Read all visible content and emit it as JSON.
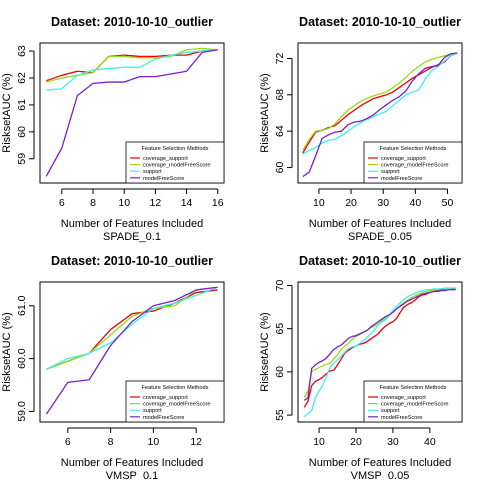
{
  "legend": {
    "title": "Feature Selection Methods",
    "entries": [
      "coverage_support",
      "coverage_modelFreeScore",
      "support",
      "modelFreeScore"
    ]
  },
  "colors": {
    "coverage_support": "#e8000b",
    "coverage_modelFreeScore": "#96dc14",
    "support": "#3cf0f0",
    "modelFreeScore": "#7a1fd0"
  },
  "chart_data": [
    {
      "type": "line",
      "title": "Dataset: 2010-10-10_outlier",
      "xlabel": "Number of Features Included",
      "subtitle": "SPADE_0.1",
      "ylabel": "RisksetAUC (%)",
      "xlim": [
        4.6,
        16.4
      ],
      "ylim": [
        58.1,
        63.3
      ],
      "xticks": [
        6,
        8,
        10,
        12,
        14,
        16
      ],
      "yticks": [
        59,
        60,
        61,
        62,
        63
      ],
      "legend_position": "bottom-right",
      "x": [
        5,
        6,
        7,
        8,
        9,
        10,
        11,
        12,
        13,
        14,
        15,
        16
      ],
      "series": [
        {
          "name": "coverage_support",
          "values": [
            61.9,
            62.1,
            62.25,
            62.2,
            62.8,
            62.85,
            62.8,
            62.8,
            62.85,
            62.85,
            63.0,
            63.05
          ]
        },
        {
          "name": "coverage_modelFreeScore",
          "values": [
            61.85,
            62.0,
            62.1,
            62.2,
            62.8,
            62.8,
            62.75,
            62.75,
            62.8,
            63.05,
            63.1,
            63.05
          ]
        },
        {
          "name": "support",
          "values": [
            61.55,
            61.6,
            62.1,
            62.3,
            62.35,
            62.4,
            62.4,
            62.7,
            62.85,
            62.95,
            63.0,
            63.05
          ]
        },
        {
          "name": "modelFreeScore",
          "values": [
            58.35,
            59.4,
            61.35,
            61.8,
            61.85,
            61.85,
            62.05,
            62.05,
            62.15,
            62.25,
            62.95,
            63.05
          ]
        }
      ]
    },
    {
      "type": "line",
      "title": "Dataset: 2010-10-10_outlier",
      "xlabel": "Number of Features Included",
      "subtitle": "SPADE_0.05",
      "ylabel": "RisksetAUC (%)",
      "xlim": [
        3.5,
        54.5
      ],
      "ylim": [
        58.3,
        73.7
      ],
      "xticks": [
        10,
        20,
        30,
        40,
        50
      ],
      "yticks": [
        60,
        64,
        68,
        72
      ],
      "legend_position": "bottom-right",
      "x": [
        5,
        7,
        9,
        11,
        13,
        15,
        17,
        19,
        21,
        23,
        25,
        27,
        29,
        31,
        33,
        35,
        37,
        39,
        41,
        43,
        45,
        47,
        49,
        51,
        53
      ],
      "series": [
        {
          "name": "coverage_support",
          "values": [
            61.6,
            62.8,
            63.9,
            64.1,
            64.4,
            64.6,
            65.2,
            65.8,
            66.3,
            66.8,
            67.2,
            67.6,
            67.8,
            68.0,
            68.3,
            68.8,
            69.3,
            69.8,
            70.2,
            70.6,
            71.0,
            71.3,
            71.6,
            72.3,
            72.6
          ]
        },
        {
          "name": "coverage_modelFreeScore",
          "values": [
            61.9,
            63.1,
            64.0,
            64.1,
            64.3,
            64.8,
            65.6,
            66.3,
            66.8,
            67.3,
            67.6,
            67.9,
            68.1,
            68.3,
            68.8,
            69.3,
            69.9,
            70.6,
            71.1,
            71.6,
            71.9,
            72.1,
            72.3,
            72.5,
            72.6
          ]
        },
        {
          "name": "support",
          "values": [
            61.5,
            61.9,
            62.2,
            62.7,
            63.0,
            63.1,
            63.5,
            64.0,
            64.5,
            64.9,
            65.3,
            65.6,
            65.9,
            66.2,
            66.8,
            67.4,
            68.0,
            68.3,
            68.5,
            69.7,
            70.6,
            71.1,
            71.7,
            72.3,
            72.6
          ]
        },
        {
          "name": "modelFreeScore",
          "values": [
            59.0,
            59.5,
            61.3,
            63.2,
            63.6,
            63.9,
            64.0,
            64.7,
            65.0,
            65.1,
            65.4,
            65.8,
            66.4,
            66.9,
            67.4,
            67.8,
            68.4,
            69.5,
            70.3,
            70.9,
            71.1,
            71.2,
            72.1,
            72.5,
            72.6
          ]
        }
      ]
    },
    {
      "type": "line",
      "title": "Dataset: 2010-10-10_outlier",
      "xlabel": "Number of Features Included",
      "subtitle": "VMSP_0.1",
      "ylabel": "RisksetAUC (%)",
      "xlim": [
        4.7,
        13.3
      ],
      "ylim": [
        58.8,
        61.45
      ],
      "xticks": [
        6,
        8,
        10,
        12
      ],
      "yticks": [
        59.0,
        60.0,
        61.0
      ],
      "legend_position": "bottom-right",
      "x": [
        5,
        6,
        7,
        8,
        9,
        10,
        11,
        12,
        13
      ],
      "series": [
        {
          "name": "coverage_support",
          "values": [
            59.8,
            59.95,
            60.1,
            60.55,
            60.85,
            60.9,
            61.05,
            61.25,
            61.3
          ]
        },
        {
          "name": "coverage_modelFreeScore",
          "values": [
            59.8,
            59.95,
            60.1,
            60.45,
            60.8,
            60.95,
            61.0,
            61.3,
            61.35
          ]
        },
        {
          "name": "support",
          "values": [
            59.8,
            60.0,
            60.1,
            60.3,
            60.65,
            60.95,
            61.05,
            61.2,
            61.35
          ]
        },
        {
          "name": "modelFreeScore",
          "values": [
            58.95,
            59.55,
            59.6,
            60.25,
            60.7,
            61.0,
            61.1,
            61.3,
            61.35
          ]
        }
      ]
    },
    {
      "type": "line",
      "title": "Dataset: 2010-10-10_outlier",
      "xlabel": "Number of Features Included",
      "subtitle": "VMSP_0.05",
      "ylabel": "RisksetAUC (%)",
      "xlim": [
        4.3,
        48.7
      ],
      "ylim": [
        54.2,
        70.4
      ],
      "xticks": [
        10,
        20,
        30,
        40
      ],
      "yticks": [
        55,
        60,
        65,
        70
      ],
      "legend_position": "bottom-right",
      "x": [
        6,
        7,
        8,
        9,
        10,
        11,
        12,
        13,
        14,
        15,
        16,
        17,
        18,
        19,
        20,
        21,
        22,
        23,
        24,
        25,
        26,
        27,
        28,
        29,
        30,
        31,
        32,
        33,
        34,
        35,
        36,
        37,
        38,
        39,
        40,
        41,
        42,
        43,
        44,
        45,
        46,
        47
      ],
      "series": [
        {
          "name": "coverage_support",
          "values": [
            55.9,
            56.6,
            58.4,
            58.9,
            59.1,
            59.4,
            59.8,
            60.1,
            60.2,
            60.8,
            61.5,
            62.2,
            62.5,
            62.8,
            63.0,
            63.2,
            63.3,
            63.5,
            63.8,
            64.1,
            64.4,
            64.9,
            65.3,
            65.6,
            65.8,
            66.2,
            66.9,
            67.5,
            67.8,
            68.0,
            68.3,
            68.7,
            68.9,
            69.0,
            69.2,
            69.3,
            69.4,
            69.5,
            69.5,
            69.6,
            69.6,
            69.6
          ]
        },
        {
          "name": "coverage_modelFreeScore",
          "values": [
            57.0,
            57.8,
            60.0,
            60.3,
            60.5,
            60.7,
            60.9,
            61.0,
            61.5,
            62.0,
            62.6,
            63.0,
            63.3,
            63.8,
            64.1,
            64.3,
            64.6,
            64.8,
            65.1,
            65.3,
            65.6,
            65.9,
            66.2,
            66.6,
            66.9,
            67.3,
            67.7,
            68.0,
            68.3,
            68.6,
            68.8,
            69.0,
            69.2,
            69.3,
            69.4,
            69.5,
            69.5,
            69.6,
            69.6,
            69.6,
            69.7,
            69.7
          ]
        },
        {
          "name": "support",
          "values": [
            54.8,
            55.2,
            55.5,
            57.0,
            57.8,
            58.4,
            59.5,
            60.5,
            61.0,
            61.4,
            61.8,
            62.3,
            62.7,
            62.9,
            63.0,
            63.3,
            63.6,
            64.0,
            64.4,
            64.9,
            65.4,
            65.8,
            66.0,
            66.5,
            67.1,
            67.6,
            68.0,
            68.4,
            68.7,
            68.9,
            69.1,
            69.3,
            69.4,
            69.5,
            69.5,
            69.6,
            69.6,
            69.6,
            69.7,
            69.7,
            69.7,
            69.7
          ]
        },
        {
          "name": "modelFreeScore",
          "values": [
            56.7,
            57.0,
            60.4,
            60.8,
            61.1,
            61.3,
            61.6,
            62.1,
            62.6,
            62.9,
            63.1,
            63.5,
            63.9,
            64.1,
            64.2,
            64.4,
            64.6,
            64.8,
            65.2,
            65.5,
            65.8,
            66.1,
            66.4,
            66.6,
            66.9,
            67.3,
            67.6,
            67.9,
            68.2,
            68.4,
            68.6,
            68.8,
            69.0,
            69.1,
            69.2,
            69.3,
            69.3,
            69.4,
            69.4,
            69.5,
            69.5,
            69.5
          ]
        }
      ]
    }
  ]
}
